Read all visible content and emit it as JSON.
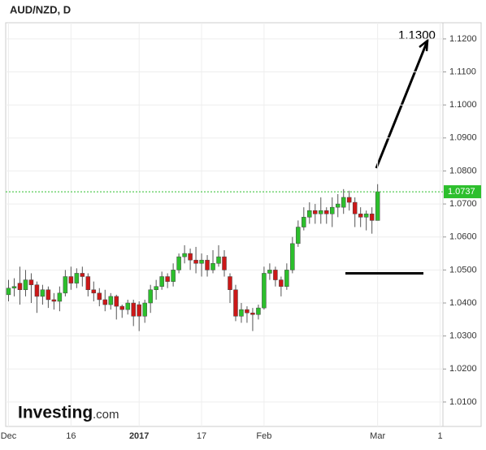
{
  "chart_data": {
    "type": "candlestick",
    "title": "AUD/NZD, D",
    "categories": [
      "Dec",
      null,
      null,
      null,
      null,
      null,
      null,
      null,
      null,
      null,
      null,
      "16",
      null,
      null,
      null,
      null,
      null,
      null,
      null,
      null,
      null,
      null,
      null,
      "2017",
      null,
      null,
      null,
      null,
      null,
      null,
      null,
      null,
      null,
      null,
      "17",
      null,
      null,
      null,
      null,
      null,
      null,
      null,
      null,
      null,
      null,
      "Feb",
      null,
      null,
      null,
      null,
      null,
      null,
      null,
      null,
      null,
      null,
      null,
      null,
      null,
      null,
      null,
      null,
      null,
      null,
      null,
      "Mar",
      null,
      null,
      null,
      null,
      null,
      null,
      null,
      null,
      null,
      null,
      "1"
    ],
    "open": [
      1.0425,
      1.0445,
      1.046,
      1.044,
      1.047,
      1.0455,
      1.042,
      1.044,
      1.041,
      1.0405,
      1.043,
      1.048,
      1.046,
      1.049,
      1.048,
      1.044,
      1.043,
      1.041,
      1.0395,
      1.042,
      1.039,
      1.038,
      1.04,
      1.0395,
      1.036,
      1.04,
      1.044,
      1.045,
      1.048,
      1.0465,
      1.05,
      1.054,
      1.055,
      1.053,
      1.052,
      1.053,
      1.05,
      1.052,
      1.054,
      1.048,
      1.044,
      1.036,
      1.038,
      1.037,
      1.0365,
      1.0385,
      1.049,
      1.05,
      1.047,
      1.045,
      1.05,
      1.058,
      1.063,
      1.066,
      1.068,
      1.067,
      1.068,
      1.067,
      1.069,
      1.069,
      1.072,
      1.0705,
      1.067,
      1.066,
      1.067,
      1.065,
      null,
      null,
      null,
      null,
      null,
      null,
      null,
      null,
      null,
      null,
      null
    ],
    "high": [
      1.047,
      1.0475,
      1.051,
      1.05,
      1.049,
      1.0465,
      1.0455,
      1.045,
      1.043,
      1.045,
      1.05,
      1.051,
      1.0505,
      1.051,
      1.049,
      1.0465,
      1.0445,
      1.044,
      1.043,
      1.0425,
      1.0395,
      1.041,
      1.041,
      1.0405,
      1.041,
      1.0455,
      1.047,
      1.0495,
      1.049,
      1.052,
      1.055,
      1.0575,
      1.0565,
      1.057,
      1.055,
      1.0545,
      1.056,
      1.0575,
      1.056,
      1.049,
      1.0455,
      1.04,
      1.039,
      1.0385,
      1.0395,
      1.051,
      1.052,
      1.051,
      1.048,
      1.052,
      1.06,
      1.065,
      1.069,
      1.0705,
      1.07,
      1.072,
      1.069,
      1.072,
      1.073,
      1.0745,
      1.074,
      1.072,
      1.069,
      1.068,
      1.069,
      1.076,
      null,
      null,
      null,
      null,
      null,
      null,
      null,
      null,
      null,
      null,
      null
    ],
    "low": [
      1.0405,
      1.042,
      1.0395,
      1.042,
      1.04,
      1.037,
      1.0395,
      1.0385,
      1.038,
      1.0375,
      1.042,
      1.044,
      1.0445,
      1.045,
      1.042,
      1.0405,
      1.039,
      1.0375,
      1.038,
      1.035,
      1.0355,
      1.0365,
      1.033,
      1.0315,
      1.034,
      1.037,
      1.041,
      1.044,
      1.0445,
      1.045,
      1.049,
      1.052,
      1.05,
      1.049,
      1.048,
      1.048,
      1.049,
      1.051,
      1.048,
      1.04,
      1.0345,
      1.034,
      1.034,
      1.0315,
      1.035,
      1.038,
      1.047,
      1.045,
      1.042,
      1.044,
      1.049,
      1.057,
      1.062,
      1.064,
      1.064,
      1.064,
      1.064,
      1.063,
      1.066,
      1.067,
      1.068,
      1.063,
      1.063,
      1.062,
      1.061,
      1.065,
      null,
      null,
      null,
      null,
      null,
      null,
      null,
      null,
      null,
      null,
      null
    ],
    "close": [
      1.0445,
      1.045,
      1.044,
      1.047,
      1.0455,
      1.042,
      1.044,
      1.041,
      1.0405,
      1.043,
      1.048,
      1.046,
      1.049,
      1.048,
      1.044,
      1.043,
      1.041,
      1.0395,
      1.042,
      1.039,
      1.038,
      1.04,
      1.036,
      1.036,
      1.04,
      1.044,
      1.045,
      1.048,
      1.0465,
      1.05,
      1.054,
      1.055,
      1.053,
      1.052,
      1.053,
      1.05,
      1.052,
      1.054,
      1.05,
      1.044,
      1.036,
      1.038,
      1.037,
      1.0365,
      1.0385,
      1.049,
      1.05,
      1.047,
      1.045,
      1.05,
      1.058,
      1.063,
      1.066,
      1.068,
      1.067,
      1.068,
      1.067,
      1.069,
      1.07,
      1.072,
      1.0705,
      1.067,
      1.066,
      1.067,
      1.065,
      1.0737,
      null,
      null,
      null,
      null,
      null,
      null,
      null,
      null,
      null,
      null,
      null
    ],
    "up_color": "#2cbf2c",
    "down_color": "#cc1818",
    "ylim": [
      1.0026,
      1.1249
    ],
    "yticks": [
      {
        "value": 1.01,
        "label": "1.0100"
      },
      {
        "value": 1.02,
        "label": "1.0200"
      },
      {
        "value": 1.03,
        "label": "1.0300"
      },
      {
        "value": 1.04,
        "label": "1.0400"
      },
      {
        "value": 1.05,
        "label": "1.0500"
      },
      {
        "value": 1.06,
        "label": "1.0600"
      },
      {
        "value": 1.07,
        "label": "1.0700"
      },
      {
        "value": 1.08,
        "label": "1.0800"
      },
      {
        "value": 1.09,
        "label": "1.0900"
      },
      {
        "value": 1.1,
        "label": "1.1000"
      },
      {
        "value": 1.11,
        "label": "1.1100"
      },
      {
        "value": 1.12,
        "label": "1.1200"
      }
    ],
    "grid": true,
    "last_price": 1.0737,
    "last_price_color": "#2cbf2c",
    "target_label": "1.1300",
    "support_line": 1.049,
    "logo": "Investing",
    "logo_suffix": ".com"
  }
}
